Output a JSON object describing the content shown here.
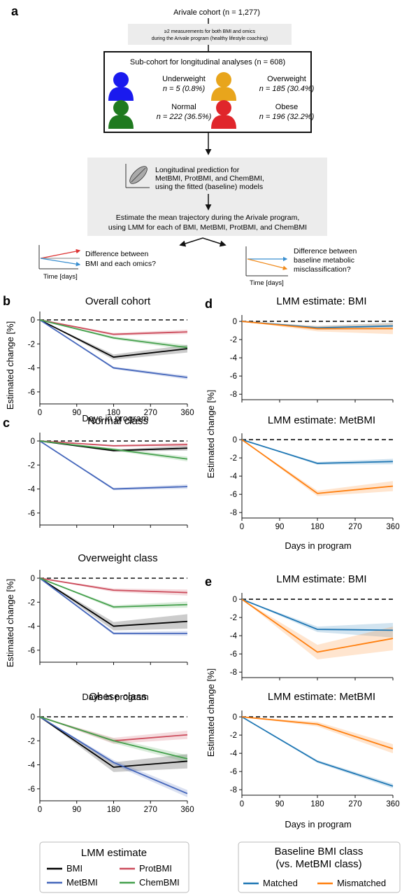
{
  "panel_letters": {
    "a": "a",
    "b": "b",
    "c": "c",
    "d": "d",
    "e": "e"
  },
  "flow": {
    "cohort": "Arivale cohort (n = 1,277)",
    "criterion_line1": "≥2 measurements for both BMI and omics",
    "criterion_line2": "during the Arivale program (healthy lifestyle coaching)",
    "subcohort_title": "Sub-cohort for longitudinal analyses (n = 608)",
    "classes": [
      {
        "name": "Underweight",
        "stat": "n = 5 (0.8%)",
        "color": "#1a1aee"
      },
      {
        "name": "Overweight",
        "stat": "n = 185 (30.4%)",
        "color": "#e8a51c"
      },
      {
        "name": "Normal",
        "stat": "n = 222 (36.5%)",
        "color": "#1f7a1f"
      },
      {
        "name": "Obese",
        "stat": "n = 196 (32.2%)",
        "color": "#e0262b"
      }
    ],
    "prediction_lines": [
      "Longitudinal prediction for",
      "MetBMI, ProtBMI, and ChemBMI,",
      "using the fitted (baseline) models"
    ],
    "estimate_lines": [
      "Estimate the mean trajectory during the Arivale program,",
      "using LMM for each of BMI, MetBMI, ProtBMI, and ChemBMI"
    ],
    "left_question": [
      "Difference between",
      "BMI and each omics?"
    ],
    "right_question": [
      "Difference between",
      "baseline metabolic",
      "misclassification?"
    ],
    "time_label": "Time [days]"
  },
  "axes": {
    "xlabel": "Days in program",
    "ylabel": "Estimated change [%]",
    "xticks": [
      "0",
      "90",
      "180",
      "270",
      "360"
    ]
  },
  "chart_data": [
    {
      "id": "b",
      "type": "line",
      "title": "Overall cohort",
      "x": [
        0,
        180,
        360
      ],
      "ylim": [
        -7,
        0.7
      ],
      "yticks": [
        0,
        -2,
        -4,
        -6
      ],
      "series": [
        {
          "name": "BMI",
          "color": "#000000",
          "values": [
            0,
            -3.1,
            -2.4
          ],
          "ci": [
            0,
            0.22,
            0.32
          ]
        },
        {
          "name": "ProtBMI",
          "color": "#cc4c5c",
          "values": [
            0,
            -1.2,
            -1.0
          ],
          "ci": [
            0,
            0.12,
            0.18
          ]
        },
        {
          "name": "MetBMI",
          "color": "#4466bb",
          "values": [
            0,
            -4.0,
            -4.8
          ],
          "ci": [
            0,
            0.1,
            0.16
          ]
        },
        {
          "name": "ChemBMI",
          "color": "#44a04c",
          "values": [
            0,
            -1.5,
            -2.3
          ],
          "ci": [
            0,
            0.12,
            0.2
          ]
        }
      ]
    },
    {
      "id": "c1",
      "type": "line",
      "title": "Normal class",
      "x": [
        0,
        180,
        360
      ],
      "ylim": [
        -7,
        0.7
      ],
      "yticks": [
        0,
        -2,
        -4,
        -6
      ],
      "series": [
        {
          "name": "BMI",
          "color": "#000000",
          "values": [
            0,
            -0.8,
            -0.6
          ],
          "ci": [
            0,
            0.1,
            0.2
          ]
        },
        {
          "name": "ProtBMI",
          "color": "#cc4c5c",
          "values": [
            0,
            -0.4,
            -0.3
          ],
          "ci": [
            0,
            0.08,
            0.15
          ]
        },
        {
          "name": "MetBMI",
          "color": "#4466bb",
          "values": [
            0,
            -4.0,
            -3.8
          ],
          "ci": [
            0,
            0.1,
            0.18
          ]
        },
        {
          "name": "ChemBMI",
          "color": "#44a04c",
          "values": [
            0,
            -0.7,
            -1.5
          ],
          "ci": [
            0,
            0.1,
            0.2
          ]
        }
      ]
    },
    {
      "id": "c2",
      "type": "line",
      "title": "Overweight class",
      "x": [
        0,
        180,
        360
      ],
      "ylim": [
        -7,
        0.7
      ],
      "yticks": [
        0,
        -2,
        -4,
        -6
      ],
      "series": [
        {
          "name": "BMI",
          "color": "#000000",
          "values": [
            0,
            -4.0,
            -3.6
          ],
          "ci": [
            0,
            0.35,
            0.6
          ]
        },
        {
          "name": "ProtBMI",
          "color": "#cc4c5c",
          "values": [
            0,
            -1.0,
            -1.2
          ],
          "ci": [
            0,
            0.15,
            0.25
          ]
        },
        {
          "name": "MetBMI",
          "color": "#4466bb",
          "values": [
            0,
            -4.6,
            -4.6
          ],
          "ci": [
            0,
            0.12,
            0.2
          ]
        },
        {
          "name": "ChemBMI",
          "color": "#44a04c",
          "values": [
            0,
            -2.4,
            -2.2
          ],
          "ci": [
            0,
            0.15,
            0.25
          ]
        }
      ]
    },
    {
      "id": "c3",
      "type": "line",
      "title": "Obese class",
      "x": [
        0,
        180,
        360
      ],
      "ylim": [
        -7,
        0.7
      ],
      "yticks": [
        0,
        -2,
        -4,
        -6
      ],
      "series": [
        {
          "name": "BMI",
          "color": "#000000",
          "values": [
            0,
            -4.2,
            -3.7
          ],
          "ci": [
            0,
            0.4,
            0.6
          ]
        },
        {
          "name": "ProtBMI",
          "color": "#cc4c5c",
          "values": [
            0,
            -2.0,
            -1.5
          ],
          "ci": [
            0,
            0.25,
            0.35
          ]
        },
        {
          "name": "MetBMI",
          "color": "#4466bb",
          "values": [
            0,
            -3.8,
            -6.4
          ],
          "ci": [
            0,
            0.2,
            0.3
          ]
        },
        {
          "name": "ChemBMI",
          "color": "#44a04c",
          "values": [
            0,
            -2.0,
            -3.5
          ],
          "ci": [
            0,
            0.2,
            0.3
          ]
        }
      ]
    },
    {
      "id": "d1",
      "type": "line",
      "title": "LMM estimate: BMI",
      "x": [
        0,
        180,
        360
      ],
      "ylim": [
        -8.6,
        0.7
      ],
      "yticks": [
        0,
        -2,
        -4,
        -6,
        -8
      ],
      "series": [
        {
          "name": "Matched",
          "color": "#1f77b4",
          "values": [
            0,
            -0.7,
            -0.5
          ],
          "ci": [
            0,
            0.2,
            0.35
          ]
        },
        {
          "name": "Mismatched",
          "color": "#ff7f0e",
          "values": [
            0,
            -0.8,
            -0.8
          ],
          "ci": [
            0,
            0.3,
            0.6
          ]
        }
      ]
    },
    {
      "id": "d2",
      "type": "line",
      "title": "LMM estimate: MetBMI",
      "x": [
        0,
        180,
        360
      ],
      "ylim": [
        -8.6,
        0.7
      ],
      "yticks": [
        0,
        -2,
        -4,
        -6,
        -8
      ],
      "series": [
        {
          "name": "Matched",
          "color": "#1f77b4",
          "values": [
            0,
            -2.6,
            -2.4
          ],
          "ci": [
            0,
            0.15,
            0.3
          ]
        },
        {
          "name": "Mismatched",
          "color": "#ff7f0e",
          "values": [
            0,
            -5.9,
            -5.1
          ],
          "ci": [
            0,
            0.3,
            0.55
          ]
        }
      ]
    },
    {
      "id": "e1",
      "type": "line",
      "title": "LMM estimate: BMI",
      "x": [
        0,
        180,
        360
      ],
      "ylim": [
        -8.6,
        0.7
      ],
      "yticks": [
        0,
        -2,
        -4,
        -6,
        -8
      ],
      "series": [
        {
          "name": "Matched",
          "color": "#1f77b4",
          "values": [
            0,
            -3.3,
            -3.4
          ],
          "ci": [
            0,
            0.3,
            0.8
          ]
        },
        {
          "name": "Mismatched",
          "color": "#ff7f0e",
          "values": [
            0,
            -5.8,
            -4.3
          ],
          "ci": [
            0,
            0.8,
            1.3
          ]
        }
      ]
    },
    {
      "id": "e2",
      "type": "line",
      "title": "LMM estimate: MetBMI",
      "x": [
        0,
        180,
        360
      ],
      "ylim": [
        -8.6,
        0.7
      ],
      "yticks": [
        0,
        -2,
        -4,
        -6,
        -8
      ],
      "series": [
        {
          "name": "Matched",
          "color": "#1f77b4",
          "values": [
            0,
            -4.9,
            -7.6
          ],
          "ci": [
            0,
            0.15,
            0.25
          ]
        },
        {
          "name": "Mismatched",
          "color": "#ff7f0e",
          "values": [
            0,
            -0.8,
            -3.5
          ],
          "ci": [
            0,
            0.25,
            0.5
          ]
        }
      ]
    }
  ],
  "legend_left": {
    "title": "LMM estimate",
    "items": [
      {
        "label": "BMI",
        "color": "#000000"
      },
      {
        "label": "ProtBMI",
        "color": "#cc4c5c"
      },
      {
        "label": "MetBMI",
        "color": "#4466bb"
      },
      {
        "label": "ChemBMI",
        "color": "#44a04c"
      }
    ]
  },
  "legend_right": {
    "title_line1": "Baseline BMI class",
    "title_line2": "(vs. MetBMI class)",
    "items": [
      {
        "label": "Matched",
        "color": "#1f77b4"
      },
      {
        "label": "Mismatched",
        "color": "#ff7f0e"
      }
    ]
  }
}
